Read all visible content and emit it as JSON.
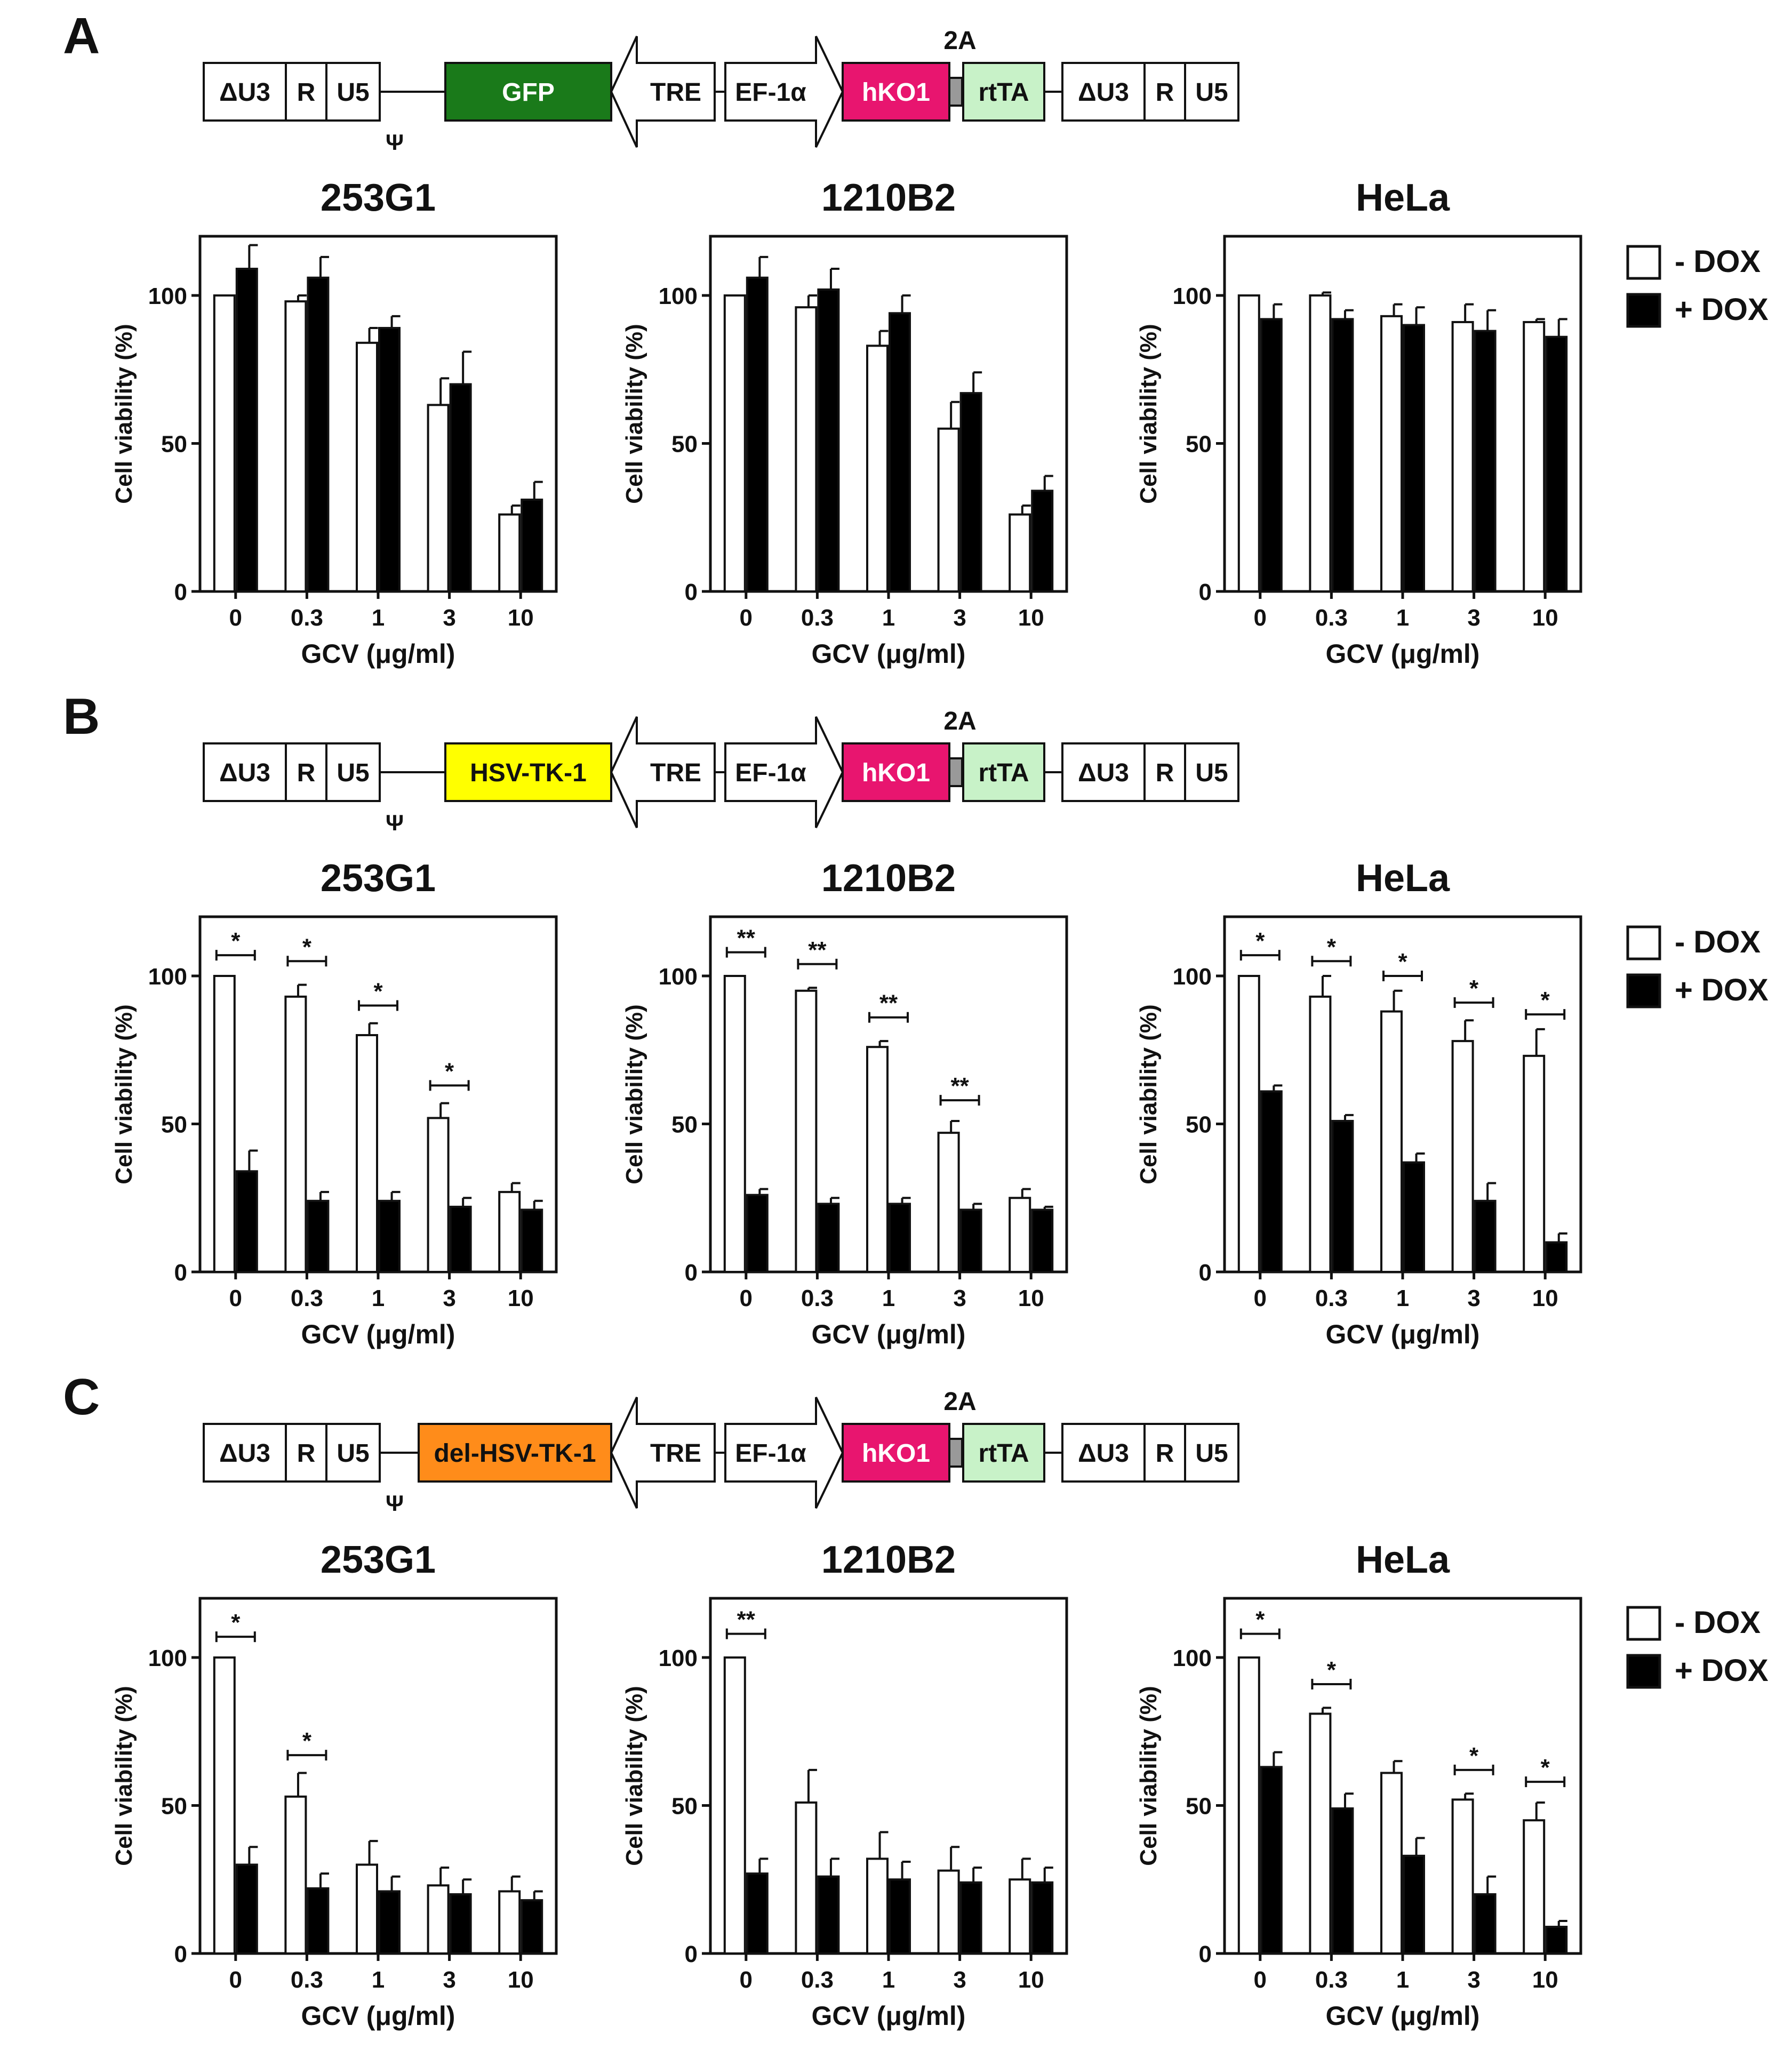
{
  "panels": [
    {
      "letter": "A",
      "construct": {
        "ltr_left": [
          "ΔU3",
          "R",
          "U5"
        ],
        "psi": "Ψ",
        "insert": {
          "label": "GFP",
          "color": "#1a7a1a",
          "text_color": "#ffffff"
        },
        "tre": "TRE",
        "promoter": "EF-1α",
        "hko1": {
          "label": "hKO1",
          "color": "#e8156f",
          "text_color": "#ffffff"
        },
        "linker": "2A",
        "rtta": {
          "label": "rtTA",
          "color": "#c8f2c8",
          "text_color": "#111111"
        },
        "ltr_right": [
          "ΔU3",
          "R",
          "U5"
        ]
      }
    },
    {
      "letter": "B",
      "construct": {
        "ltr_left": [
          "ΔU3",
          "R",
          "U5"
        ],
        "psi": "Ψ",
        "insert": {
          "label": "HSV-TK-1",
          "color": "#ffff00",
          "text_color": "#111111"
        },
        "tre": "TRE",
        "promoter": "EF-1α",
        "hko1": {
          "label": "hKO1",
          "color": "#e8156f",
          "text_color": "#ffffff"
        },
        "linker": "2A",
        "rtta": {
          "label": "rtTA",
          "color": "#c8f2c8",
          "text_color": "#111111"
        },
        "ltr_right": [
          "ΔU3",
          "R",
          "U5"
        ]
      }
    },
    {
      "letter": "C",
      "construct": {
        "ltr_left": [
          "ΔU3",
          "R",
          "U5"
        ],
        "psi": "Ψ",
        "insert": {
          "label": "del-HSV-TK-1",
          "color": "#ff8c1a",
          "text_color": "#111111"
        },
        "tre": "TRE",
        "promoter": "EF-1α",
        "hko1": {
          "label": "hKO1",
          "color": "#e8156f",
          "text_color": "#ffffff"
        },
        "linker": "2A",
        "rtta": {
          "label": "rtTA",
          "color": "#c8f2c8",
          "text_color": "#111111"
        },
        "ltr_right": [
          "ΔU3",
          "R",
          "U5"
        ]
      }
    }
  ],
  "legend": {
    "minus": "- DOX",
    "plus": "+ DOX"
  },
  "chart_data": [
    {
      "panel": "A",
      "type": "bar",
      "title": "253G1",
      "xlabel": "GCV (μg/ml)",
      "ylabel": "Cell viability (%)",
      "categories": [
        "0",
        "0.3",
        "1",
        "3",
        "10"
      ],
      "ylim": [
        0,
        120
      ],
      "yticks": [
        0,
        50,
        100
      ],
      "series": [
        {
          "name": "- DOX",
          "values": [
            100,
            98,
            84,
            63,
            26
          ],
          "errors": [
            0,
            2,
            5,
            9,
            3
          ]
        },
        {
          "name": "+ DOX",
          "values": [
            109,
            106,
            89,
            70,
            31
          ],
          "errors": [
            8,
            7,
            4,
            11,
            6
          ]
        }
      ],
      "significance": []
    },
    {
      "panel": "A",
      "type": "bar",
      "title": "1210B2",
      "xlabel": "GCV (μg/ml)",
      "ylabel": "Cell viability (%)",
      "categories": [
        "0",
        "0.3",
        "1",
        "3",
        "10"
      ],
      "ylim": [
        0,
        120
      ],
      "yticks": [
        0,
        50,
        100
      ],
      "series": [
        {
          "name": "- DOX",
          "values": [
            100,
            96,
            83,
            55,
            26
          ],
          "errors": [
            0,
            4,
            5,
            9,
            3
          ]
        },
        {
          "name": "+ DOX",
          "values": [
            106,
            102,
            94,
            67,
            34
          ],
          "errors": [
            7,
            7,
            6,
            7,
            5
          ]
        }
      ],
      "significance": []
    },
    {
      "panel": "A",
      "type": "bar",
      "title": "HeLa",
      "xlabel": "GCV (μg/ml)",
      "ylabel": "Cell viability (%)",
      "categories": [
        "0",
        "0.3",
        "1",
        "3",
        "10"
      ],
      "ylim": [
        0,
        120
      ],
      "yticks": [
        0,
        50,
        100
      ],
      "series": [
        {
          "name": "- DOX",
          "values": [
            100,
            100,
            93,
            91,
            91
          ],
          "errors": [
            0,
            1,
            4,
            6,
            1
          ]
        },
        {
          "name": "+ DOX",
          "values": [
            92,
            92,
            90,
            88,
            86
          ],
          "errors": [
            5,
            3,
            6,
            7,
            6
          ]
        }
      ],
      "significance": []
    },
    {
      "panel": "B",
      "type": "bar",
      "title": "253G1",
      "xlabel": "GCV (μg/ml)",
      "ylabel": "Cell viability (%)",
      "categories": [
        "0",
        "0.3",
        "1",
        "3",
        "10"
      ],
      "ylim": [
        0,
        120
      ],
      "yticks": [
        0,
        50,
        100
      ],
      "series": [
        {
          "name": "- DOX",
          "values": [
            100,
            93,
            80,
            52,
            27
          ],
          "errors": [
            0,
            4,
            4,
            5,
            3
          ]
        },
        {
          "name": "+ DOX",
          "values": [
            34,
            24,
            24,
            22,
            21
          ],
          "errors": [
            7,
            3,
            3,
            3,
            3
          ]
        }
      ],
      "significance": [
        {
          "category": "0",
          "label": "*",
          "y": 107
        },
        {
          "category": "0.3",
          "label": "*",
          "y": 105
        },
        {
          "category": "1",
          "label": "*",
          "y": 90
        },
        {
          "category": "3",
          "label": "*",
          "y": 63
        }
      ]
    },
    {
      "panel": "B",
      "type": "bar",
      "title": "1210B2",
      "xlabel": "GCV (μg/ml)",
      "ylabel": "Cell viability (%)",
      "categories": [
        "0",
        "0.3",
        "1",
        "3",
        "10"
      ],
      "ylim": [
        0,
        120
      ],
      "yticks": [
        0,
        50,
        100
      ],
      "series": [
        {
          "name": "- DOX",
          "values": [
            100,
            95,
            76,
            47,
            25
          ],
          "errors": [
            0,
            1,
            2,
            4,
            3
          ]
        },
        {
          "name": "+ DOX",
          "values": [
            26,
            23,
            23,
            21,
            21
          ],
          "errors": [
            2,
            2,
            2,
            2,
            1
          ]
        }
      ],
      "significance": [
        {
          "category": "0",
          "label": "**",
          "y": 108
        },
        {
          "category": "0.3",
          "label": "**",
          "y": 104
        },
        {
          "category": "1",
          "label": "**",
          "y": 86
        },
        {
          "category": "3",
          "label": "**",
          "y": 58
        }
      ]
    },
    {
      "panel": "B",
      "type": "bar",
      "title": "HeLa",
      "xlabel": "GCV (μg/ml)",
      "ylabel": "Cell viability (%)",
      "categories": [
        "0",
        "0.3",
        "1",
        "3",
        "10"
      ],
      "ylim": [
        0,
        120
      ],
      "yticks": [
        0,
        50,
        100
      ],
      "series": [
        {
          "name": "- DOX",
          "values": [
            100,
            93,
            88,
            78,
            73
          ],
          "errors": [
            0,
            7,
            7,
            7,
            9
          ]
        },
        {
          "name": "+ DOX",
          "values": [
            61,
            51,
            37,
            24,
            10
          ],
          "errors": [
            2,
            2,
            3,
            6,
            3
          ]
        }
      ],
      "significance": [
        {
          "category": "0",
          "label": "*",
          "y": 107
        },
        {
          "category": "0.3",
          "label": "*",
          "y": 105
        },
        {
          "category": "1",
          "label": "*",
          "y": 100
        },
        {
          "category": "3",
          "label": "*",
          "y": 91
        },
        {
          "category": "10",
          "label": "*",
          "y": 87
        }
      ]
    },
    {
      "panel": "C",
      "type": "bar",
      "title": "253G1",
      "xlabel": "GCV (μg/ml)",
      "ylabel": "Cell viability (%)",
      "categories": [
        "0",
        "0.3",
        "1",
        "3",
        "10"
      ],
      "ylim": [
        0,
        120
      ],
      "yticks": [
        0,
        50,
        100
      ],
      "series": [
        {
          "name": "- DOX",
          "values": [
            100,
            53,
            30,
            23,
            21
          ],
          "errors": [
            0,
            8,
            8,
            6,
            5
          ]
        },
        {
          "name": "+ DOX",
          "values": [
            30,
            22,
            21,
            20,
            18
          ],
          "errors": [
            6,
            5,
            5,
            5,
            3
          ]
        }
      ],
      "significance": [
        {
          "category": "0",
          "label": "*",
          "y": 107
        },
        {
          "category": "0.3",
          "label": "*",
          "y": 67
        }
      ]
    },
    {
      "panel": "C",
      "type": "bar",
      "title": "1210B2",
      "xlabel": "GCV (μg/ml)",
      "ylabel": "Cell viability (%)",
      "categories": [
        "0",
        "0.3",
        "1",
        "3",
        "10"
      ],
      "ylim": [
        0,
        120
      ],
      "yticks": [
        0,
        50,
        100
      ],
      "series": [
        {
          "name": "- DOX",
          "values": [
            100,
            51,
            32,
            28,
            25
          ],
          "errors": [
            0,
            11,
            9,
            8,
            7
          ]
        },
        {
          "name": "+ DOX",
          "values": [
            27,
            26,
            25,
            24,
            24
          ],
          "errors": [
            5,
            6,
            6,
            5,
            5
          ]
        }
      ],
      "significance": [
        {
          "category": "0",
          "label": "**",
          "y": 108
        }
      ]
    },
    {
      "panel": "C",
      "type": "bar",
      "title": "HeLa",
      "xlabel": "GCV (μg/ml)",
      "ylabel": "Cell viability (%)",
      "categories": [
        "0",
        "0.3",
        "1",
        "3",
        "10"
      ],
      "ylim": [
        0,
        120
      ],
      "yticks": [
        0,
        50,
        100
      ],
      "series": [
        {
          "name": "- DOX",
          "values": [
            100,
            81,
            61,
            52,
            45
          ],
          "errors": [
            0,
            2,
            4,
            2,
            6
          ]
        },
        {
          "name": "+ DOX",
          "values": [
            63,
            49,
            33,
            20,
            9
          ],
          "errors": [
            5,
            5,
            6,
            6,
            2
          ]
        }
      ],
      "significance": [
        {
          "category": "0",
          "label": "*",
          "y": 108
        },
        {
          "category": "0.3",
          "label": "*",
          "y": 91
        },
        {
          "category": "3",
          "label": "*",
          "y": 62
        },
        {
          "category": "10",
          "label": "*",
          "y": 58
        }
      ]
    }
  ]
}
